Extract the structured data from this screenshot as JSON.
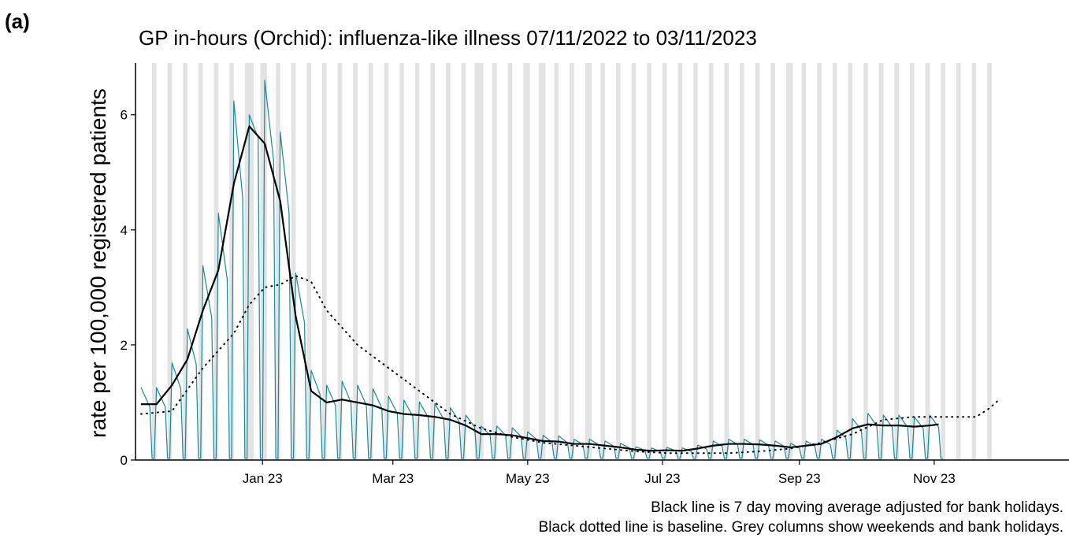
{
  "chart_data": {
    "type": "line",
    "panel_label": "(a)",
    "title": "GP in-hours (Orchid): influenza-like illness 07/11/2022 to 03/11/2023",
    "ylabel": "rate per 100,000 registered patients",
    "notes": [
      "Black line is 7 day moving average adjusted for bank holidays.",
      "Black dotted line is baseline. Grey columns show weekends and bank holidays."
    ],
    "xlim": [
      -2.5,
      420
    ],
    "ylim": [
      0,
      6.9
    ],
    "yticks": [
      0,
      2,
      4,
      6
    ],
    "xticks": [
      {
        "value": 55,
        "label": "Jan 23"
      },
      {
        "value": 114,
        "label": "Mar 23"
      },
      {
        "value": 175,
        "label": "May 23"
      },
      {
        "value": 236,
        "label": "Jul 23"
      },
      {
        "value": 298,
        "label": "Sep 23"
      },
      {
        "value": 359,
        "label": "Nov 23"
      }
    ],
    "shade_color": "#e3e3e3",
    "shaded_periods": [
      [
        5,
        7
      ],
      [
        12,
        14
      ],
      [
        19,
        21
      ],
      [
        26,
        28
      ],
      [
        33,
        35
      ],
      [
        40,
        42
      ],
      [
        47,
        51
      ],
      [
        54,
        57
      ],
      [
        61,
        63
      ],
      [
        68,
        70
      ],
      [
        75,
        77
      ],
      [
        82,
        84
      ],
      [
        89,
        91
      ],
      [
        96,
        98
      ],
      [
        103,
        105
      ],
      [
        110,
        112
      ],
      [
        117,
        119
      ],
      [
        124,
        126
      ],
      [
        131,
        133
      ],
      [
        138,
        140
      ],
      [
        145,
        147
      ],
      [
        151,
        155
      ],
      [
        159,
        161
      ],
      [
        166,
        168
      ],
      [
        173,
        176
      ],
      [
        180,
        183
      ],
      [
        187,
        189
      ],
      [
        194,
        196
      ],
      [
        201,
        204
      ],
      [
        208,
        210
      ],
      [
        215,
        217
      ],
      [
        222,
        224
      ],
      [
        229,
        231
      ],
      [
        236,
        238
      ],
      [
        243,
        245
      ],
      [
        250,
        252
      ],
      [
        257,
        259
      ],
      [
        264,
        266
      ],
      [
        271,
        273
      ],
      [
        278,
        280
      ],
      [
        285,
        287
      ],
      [
        292,
        295
      ],
      [
        299,
        301
      ],
      [
        306,
        308
      ],
      [
        313,
        315
      ],
      [
        320,
        322
      ],
      [
        327,
        329
      ],
      [
        334,
        336
      ],
      [
        341,
        343
      ],
      [
        348,
        350
      ],
      [
        355,
        357
      ],
      [
        362,
        364
      ],
      [
        369,
        371
      ],
      [
        376,
        378
      ],
      [
        383,
        385
      ]
    ],
    "series": [
      {
        "color": "#17899a",
        "style": "solid",
        "width": 1.2,
        "x": [
          0,
          4,
          5,
          6,
          7,
          11,
          12,
          13,
          14,
          18,
          19,
          20,
          21,
          25,
          26,
          27,
          28,
          32,
          33,
          34,
          35,
          39,
          40,
          41,
          42,
          46,
          47,
          48,
          49,
          53,
          54,
          55,
          56,
          60,
          61,
          62,
          63,
          67,
          68,
          69,
          70,
          74,
          75,
          76,
          77,
          81,
          82,
          83,
          84,
          88,
          89,
          90,
          91,
          95,
          96,
          97,
          98,
          102,
          103,
          104,
          105,
          109,
          110,
          111,
          112,
          116,
          117,
          118,
          119,
          123,
          124,
          125,
          126,
          130,
          131,
          132,
          133,
          137,
          138,
          139,
          140,
          144,
          145,
          146,
          147,
          151,
          152,
          153,
          154,
          158,
          159,
          160,
          161,
          165,
          166,
          167,
          168,
          172,
          173,
          174,
          175,
          179,
          180,
          181,
          182,
          186,
          187,
          188,
          189,
          193,
          194,
          195,
          196,
          200,
          201,
          202,
          203,
          207,
          208,
          209,
          210,
          214,
          215,
          216,
          217,
          221,
          222,
          223,
          224,
          228,
          229,
          230,
          231,
          235,
          236,
          237,
          238,
          242,
          243,
          244,
          245,
          249,
          250,
          251,
          252,
          256,
          257,
          258,
          259,
          263,
          264,
          265,
          266,
          270,
          271,
          272,
          273,
          277,
          278,
          279,
          280,
          284,
          285,
          286,
          287,
          291,
          292,
          293,
          294,
          298,
          299,
          300,
          301,
          305,
          306,
          307,
          308,
          312,
          313,
          314,
          315,
          319,
          320,
          321,
          322,
          326,
          327,
          328,
          329,
          333,
          334,
          335,
          336,
          340,
          341,
          342,
          343,
          347,
          348,
          349,
          350,
          354,
          355,
          356,
          357,
          361,
          362,
          363
        ],
        "values": [
          1.26,
          0.92,
          0.03,
          0.03,
          1.26,
          0.92,
          0.03,
          0.03,
          1.69,
          1.24,
          0.03,
          0.03,
          2.28,
          1.66,
          0.03,
          0.03,
          3.38,
          2.47,
          0.03,
          0.03,
          4.29,
          3.14,
          0.03,
          0.03,
          6.24,
          4.56,
          0.03,
          0.03,
          6.0,
          5.6,
          0.03,
          0.03,
          6.6,
          5.2,
          0.03,
          0.03,
          5.7,
          4.3,
          0.03,
          0.03,
          3.25,
          2.38,
          0.03,
          0.03,
          1.56,
          1.14,
          0.03,
          0.03,
          1.3,
          0.95,
          0.03,
          0.03,
          1.37,
          1.0,
          0.03,
          0.03,
          1.3,
          0.95,
          0.03,
          0.03,
          1.24,
          0.9,
          0.03,
          0.03,
          1.11,
          0.81,
          0.03,
          0.03,
          1.04,
          0.76,
          0.03,
          0.03,
          1.01,
          0.74,
          0.03,
          0.03,
          0.98,
          0.71,
          0.03,
          0.03,
          0.91,
          0.67,
          0.03,
          0.03,
          0.78,
          0.57,
          0.03,
          0.03,
          0.59,
          0.43,
          0.03,
          0.03,
          0.59,
          0.43,
          0.03,
          0.03,
          0.56,
          0.41,
          0.03,
          0.03,
          0.49,
          0.36,
          0.03,
          0.03,
          0.43,
          0.31,
          0.03,
          0.03,
          0.42,
          0.3,
          0.03,
          0.03,
          0.36,
          0.27,
          0.03,
          0.03,
          0.36,
          0.27,
          0.03,
          0.03,
          0.33,
          0.24,
          0.03,
          0.03,
          0.29,
          0.21,
          0.03,
          0.03,
          0.23,
          0.17,
          0.03,
          0.03,
          0.21,
          0.15,
          0.03,
          0.03,
          0.22,
          0.16,
          0.03,
          0.03,
          0.21,
          0.15,
          0.03,
          0.03,
          0.26,
          0.19,
          0.03,
          0.03,
          0.33,
          0.24,
          0.03,
          0.03,
          0.36,
          0.27,
          0.03,
          0.03,
          0.36,
          0.27,
          0.03,
          0.03,
          0.35,
          0.26,
          0.03,
          0.03,
          0.33,
          0.24,
          0.03,
          0.03,
          0.29,
          0.21,
          0.03,
          0.03,
          0.33,
          0.24,
          0.03,
          0.03,
          0.36,
          0.27,
          0.03,
          0.03,
          0.52,
          0.38,
          0.03,
          0.03,
          0.72,
          0.52,
          0.03,
          0.03,
          0.81,
          0.59,
          0.03,
          0.03,
          0.78,
          0.57,
          0.03,
          0.03,
          0.78,
          0.57,
          0.03,
          0.03,
          0.75,
          0.55,
          0.03,
          0.03,
          0.78,
          0.57,
          0.03,
          0.03
        ]
      },
      {
        "color": "#000000",
        "style": "solid",
        "width": 2.2,
        "x": [
          0,
          7,
          14,
          21,
          28,
          35,
          42,
          49,
          56,
          63,
          70,
          77,
          84,
          91,
          98,
          105,
          112,
          119,
          126,
          133,
          140,
          147,
          154,
          161,
          168,
          175,
          182,
          189,
          196,
          203,
          210,
          217,
          224,
          231,
          238,
          245,
          252,
          259,
          266,
          273,
          280,
          287,
          294,
          301,
          308,
          315,
          322,
          329,
          336,
          343,
          350,
          357,
          361
        ],
        "values": [
          0.97,
          0.97,
          1.3,
          1.75,
          2.6,
          3.3,
          4.8,
          5.8,
          5.5,
          4.5,
          2.5,
          1.2,
          1.0,
          1.05,
          1.0,
          0.95,
          0.85,
          0.8,
          0.78,
          0.75,
          0.7,
          0.6,
          0.45,
          0.45,
          0.43,
          0.38,
          0.33,
          0.32,
          0.28,
          0.28,
          0.25,
          0.22,
          0.18,
          0.16,
          0.17,
          0.16,
          0.2,
          0.25,
          0.28,
          0.28,
          0.27,
          0.25,
          0.22,
          0.25,
          0.28,
          0.4,
          0.55,
          0.62,
          0.6,
          0.6,
          0.58,
          0.6,
          0.62
        ]
      },
      {
        "color": "#000000",
        "style": "dotted",
        "width": 2,
        "x": [
          0,
          14,
          28,
          42,
          49,
          56,
          63,
          70,
          77,
          84,
          98,
          112,
          126,
          140,
          154,
          168,
          182,
          196,
          210,
          224,
          238,
          252,
          266,
          280,
          294,
          308,
          322,
          336,
          350,
          364,
          378,
          384,
          389
        ],
        "values": [
          0.8,
          0.85,
          1.6,
          2.2,
          2.7,
          3.0,
          3.05,
          3.2,
          3.1,
          2.6,
          2.0,
          1.6,
          1.2,
          0.8,
          0.55,
          0.4,
          0.3,
          0.25,
          0.2,
          0.15,
          0.12,
          0.12,
          0.12,
          0.15,
          0.2,
          0.3,
          0.45,
          0.7,
          0.75,
          0.75,
          0.75,
          0.9,
          1.07
        ]
      }
    ]
  }
}
